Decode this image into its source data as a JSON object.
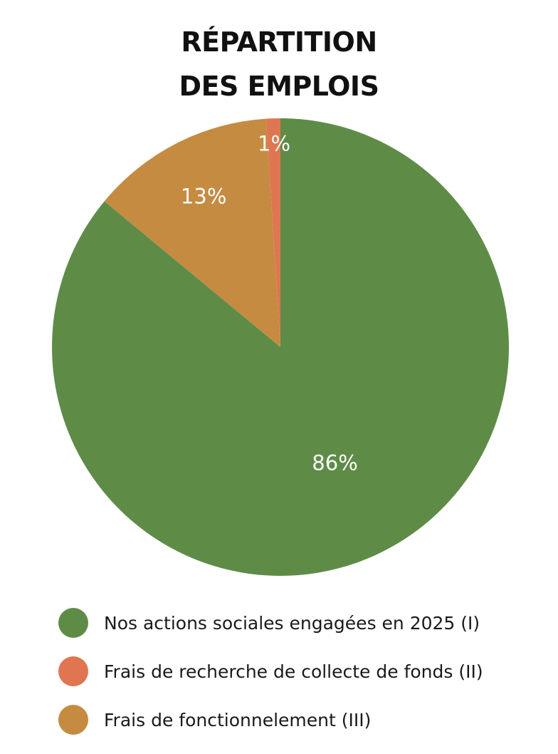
{
  "chart_data": {
    "type": "pie",
    "title": "RÉPARTITION DES EMPLOIS",
    "title_lines": [
      "RÉPARTITION",
      "DES EMPLOIS"
    ],
    "slices": [
      {
        "label": "Nos actions sociales engagées en 2025 (I)",
        "value": 86,
        "display": "86%",
        "color": "#5e8c47"
      },
      {
        "label": "Frais de recherche de collecte de fonds (II)",
        "value": 1,
        "display": "1%",
        "color": "#df7651"
      },
      {
        "label": "Frais de fonctionnelement (III)",
        "value": 13,
        "display": "13%",
        "color": "#c58b41"
      }
    ],
    "legend_position": "bottom"
  }
}
